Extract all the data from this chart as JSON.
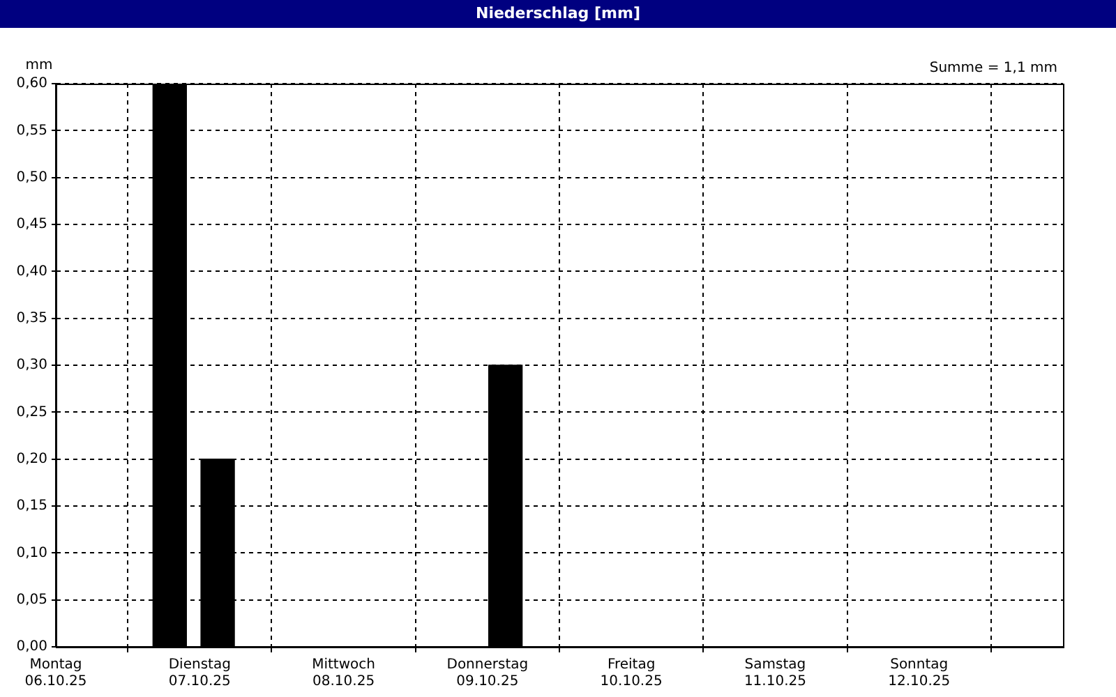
{
  "chart_data": {
    "type": "bar",
    "title": "Niederschlag [mm]",
    "ylabel": "mm",
    "annotations": [
      "Summe = 1,1 mm"
    ],
    "x": [
      "--10-06T19:00",
      "--10-07T03:00",
      "--10-09T03:00"
    ],
    "values": [
      0.6,
      0.2,
      0.3
    ],
    "color": "#000000",
    "xlim": [
      "--10-06",
      "--10-13"
    ],
    "xticks": [
      {
        "value": "--10-06",
        "label": "Montag\n06.10.25"
      },
      {
        "value": "--10-07",
        "label": "Dienstag\n07.10.25"
      },
      {
        "value": "--10-08",
        "label": "Mittwoch\n08.10.25"
      },
      {
        "value": "--10-09",
        "label": "Donnerstag\n09.10.25"
      },
      {
        "value": "--10-10",
        "label": "Freitag\n10.10.25"
      },
      {
        "value": "--10-11",
        "label": "Samstag\n11.10.25"
      },
      {
        "value": "--10-12",
        "label": "Sonntag\n12.10.25"
      }
    ],
    "ylim": [
      0,
      0.6
    ],
    "yticks": [
      {
        "value": 0,
        "label": "0,00"
      },
      {
        "value": 0.05,
        "label": "0,05"
      },
      {
        "value": 0.1,
        "label": "0,10"
      },
      {
        "value": 0.15,
        "label": "0,15"
      },
      {
        "value": 0.2,
        "label": "0,20"
      },
      {
        "value": 0.25,
        "label": "0,25"
      },
      {
        "value": 0.3,
        "label": "0,30"
      },
      {
        "value": 0.35,
        "label": "0,35"
      },
      {
        "value": 0.4,
        "label": "0,40"
      },
      {
        "value": 0.45,
        "label": "0,45"
      },
      {
        "value": 0.5,
        "label": "0,50"
      },
      {
        "value": 0.55,
        "label": "0,55"
      },
      {
        "value": 0.6,
        "label": "0,60"
      }
    ],
    "grid": true,
    "legend": false
  }
}
